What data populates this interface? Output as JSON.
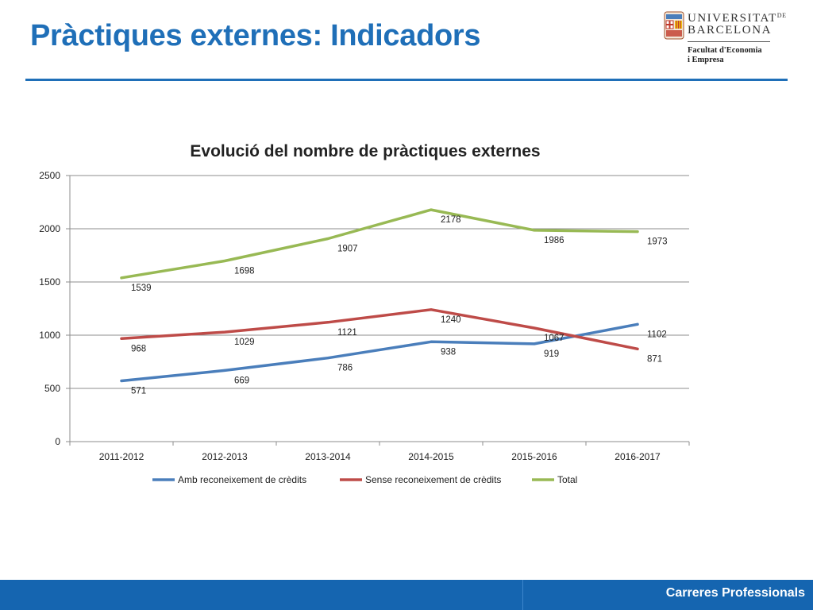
{
  "slide": {
    "title": "Pràctiques externes: Indicadors",
    "footer_text": "Carreres Professionals",
    "accent_color": "#1f6fb8",
    "footer_color": "#1565b0"
  },
  "logo": {
    "name_line1_main": "UNIVERSITAT",
    "name_line1_small": "DE",
    "name_line2": "BARCELONA",
    "faculty": "Facultat d'Economia\ni Empresa"
  },
  "chart_data": {
    "type": "line",
    "title": "Evolució del nombre de pràctiques externes",
    "categories": [
      "2011-2012",
      "2012-2013",
      "2013-2014",
      "2014-2015",
      "2015-2016",
      "2016-2017"
    ],
    "ylim": [
      0,
      2500
    ],
    "yticks": [
      0,
      500,
      1000,
      1500,
      2000,
      2500
    ],
    "grid": true,
    "legend_position": "bottom",
    "series": [
      {
        "name": "Amb reconeixement de crèdits",
        "color": "#4a7ebb",
        "values": [
          571,
          669,
          786,
          938,
          919,
          1102
        ]
      },
      {
        "name": "Sense reconeixement de crèdits",
        "color": "#be4b48",
        "values": [
          968,
          1029,
          1121,
          1240,
          1067,
          871
        ]
      },
      {
        "name": "Total",
        "color": "#98b954",
        "values": [
          1539,
          1698,
          1907,
          2178,
          1986,
          1973
        ]
      }
    ]
  }
}
